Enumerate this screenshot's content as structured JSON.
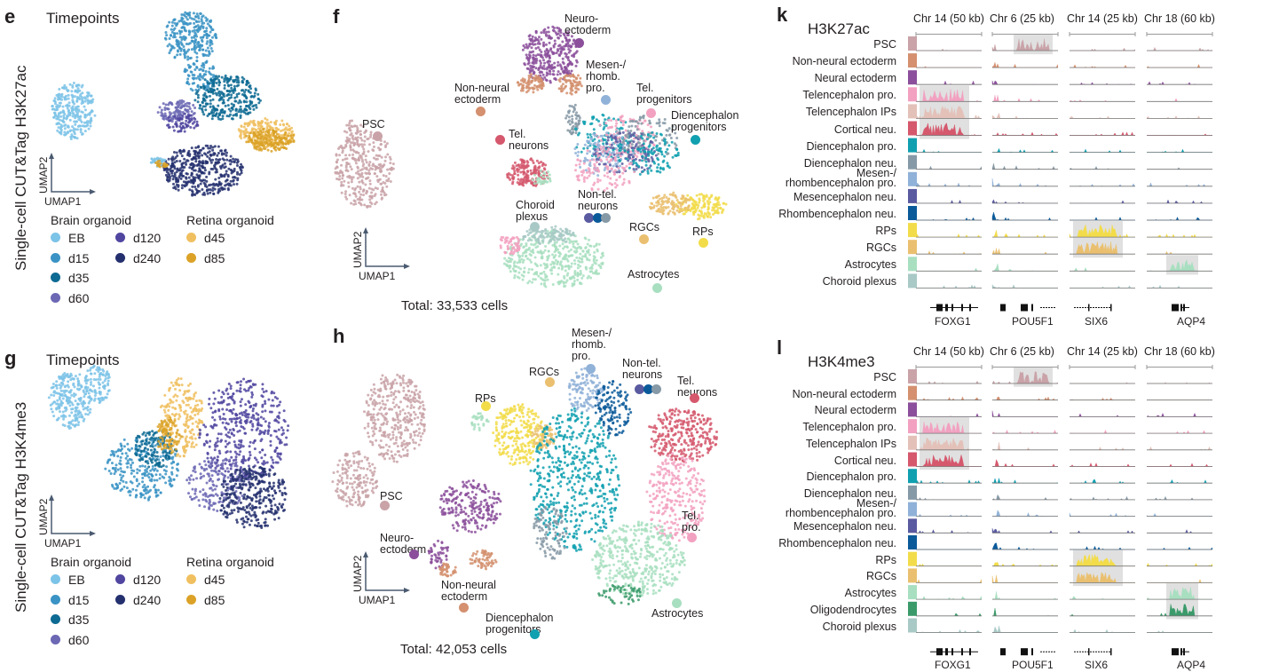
{
  "timepoints": {
    "brain_title": "Brain organoid",
    "retina_title": "Retina organoid",
    "items": [
      {
        "key": "EB",
        "label": "EB",
        "color": "#7cc3e8"
      },
      {
        "key": "d15",
        "label": "d15",
        "color": "#3a93c4"
      },
      {
        "key": "d35",
        "label": "d35",
        "color": "#0d6a93"
      },
      {
        "key": "d60",
        "label": "d60",
        "color": "#6c68b4"
      },
      {
        "key": "d120",
        "label": "d120",
        "color": "#5046a0"
      },
      {
        "key": "d240",
        "label": "d240",
        "color": "#24306e"
      },
      {
        "key": "d45",
        "label": "d45",
        "color": "#f0c060"
      },
      {
        "key": "d85",
        "label": "d85",
        "color": "#dba227"
      }
    ]
  },
  "cell_types": {
    "psc": {
      "name": "PSC",
      "color": "#c9a3a8"
    },
    "nne": {
      "name": "Non-neural ectoderm",
      "color": "#d4906f"
    },
    "ne": {
      "name": "Neural ectoderm",
      "color": "#8b4f9b"
    },
    "telpro": {
      "name": "Telencephalon pro.",
      "color": "#f2a1c0"
    },
    "telip": {
      "name": "Telencephalon IPs",
      "color": "#e3c1b9"
    },
    "cort": {
      "name": "Cortical neu.",
      "color": "#d5586d"
    },
    "dienpro": {
      "name": "Diencephalon pro.",
      "color": "#10a0b0"
    },
    "dienneu": {
      "name": "Diencephalon neu.",
      "color": "#8699a6"
    },
    "mespro": {
      "name": "Mesen-/\nrhombencephalon pro.",
      "color": "#90b2d8"
    },
    "mesneu": {
      "name": "Mesencephalon neu.",
      "color": "#5a5aa0"
    },
    "rhneu": {
      "name": "Rhombencephalon neu.",
      "color": "#0a5a9a"
    },
    "rps": {
      "name": "RPs",
      "color": "#f2dc4a"
    },
    "rgcs": {
      "name": "RGCs",
      "color": "#eac070"
    },
    "astro": {
      "name": "Astrocytes",
      "color": "#a8dfc0"
    },
    "oligo": {
      "name": "Oligodendrocytes",
      "color": "#3b9a6a"
    },
    "chor": {
      "name": "Choroid plexus",
      "color": "#a8c9c6"
    }
  },
  "panel_e": {
    "letter": "e",
    "title": "Timepoints",
    "ylabel": "Single-cell CUT&Tag H3K27ac",
    "umap_x": "UMAP1",
    "umap_y": "UMAP2"
  },
  "panel_g": {
    "letter": "g",
    "title": "Timepoints",
    "ylabel": "Single-cell CUT&Tag H3K4me3",
    "umap_x": "UMAP1",
    "umap_y": "UMAP2"
  },
  "panel_f": {
    "letter": "f",
    "umap_x": "UMAP1",
    "umap_y": "UMAP2",
    "total": "Total: 33,533 cells",
    "labels": [
      {
        "text": "PSC",
        "dots": [
          "psc"
        ]
      },
      {
        "text": "Neuro-\nectoderm",
        "dots": [
          "ne"
        ]
      },
      {
        "text": "Mesen-/\nrhomb.\npro.",
        "dots": [
          "mespro"
        ]
      },
      {
        "text": "Non-neural\nectoderm",
        "dots": [
          "nne"
        ]
      },
      {
        "text": "Tel.\nprogenitors",
        "dots": [
          "telpro"
        ]
      },
      {
        "text": "Diencephalon\nprogenitors",
        "dots": [
          "dienpro"
        ]
      },
      {
        "text": "Tel.\nneurons",
        "dots": [
          "cort"
        ]
      },
      {
        "text": "Non-tel.\nneurons",
        "dots": [
          "mesneu",
          "rhneu",
          "dienneu"
        ]
      },
      {
        "text": "Choroid\nplexus",
        "dots": [
          "chor"
        ]
      },
      {
        "text": "RGCs",
        "dots": [
          "rgcs"
        ]
      },
      {
        "text": "RPs",
        "dots": [
          "rps"
        ]
      },
      {
        "text": "Astrocytes",
        "dots": [
          "astro"
        ]
      }
    ]
  },
  "panel_h": {
    "letter": "h",
    "umap_x": "UMAP1",
    "umap_y": "UMAP2",
    "total": "Total: 42,053 cells",
    "labels": [
      {
        "text": "Mesen-/\nrhomb.\npro.",
        "dots": [
          "mespro"
        ]
      },
      {
        "text": "RGCs",
        "dots": [
          "rgcs"
        ]
      },
      {
        "text": "RPs",
        "dots": [
          "rps"
        ]
      },
      {
        "text": "Non-tel.\nneurons",
        "dots": [
          "mesneu",
          "rhneu",
          "dienneu"
        ]
      },
      {
        "text": "Tel.\nneurons",
        "dots": [
          "cort"
        ]
      },
      {
        "text": "PSC",
        "dots": [
          "psc"
        ]
      },
      {
        "text": "Neuro-\nectoderm",
        "dots": [
          "ne"
        ]
      },
      {
        "text": "Tel.\npro.",
        "dots": [
          "telpro"
        ]
      },
      {
        "text": "Non-neural\nectoderm",
        "dots": [
          "nne"
        ]
      },
      {
        "text": "Diencephalon\nprogenitors",
        "dots": [
          "dienpro"
        ]
      },
      {
        "text": "Astrocytes",
        "dots": [
          "astro"
        ]
      }
    ]
  },
  "panel_k": {
    "letter": "k",
    "mark": "H3K27ac",
    "columns": [
      "Chr 14 (50 kb)",
      "Chr 6 (25 kb)",
      "Chr 14 (25 kb)",
      "Chr 18 (60 kb)"
    ],
    "genes": [
      "FOXG1",
      "POU5F1",
      "SIX6",
      "AQP4"
    ],
    "rows": [
      "psc",
      "nne",
      "ne",
      "telpro",
      "telip",
      "cort",
      "dienpro",
      "dienneu",
      "mespro",
      "mesneu",
      "rhneu",
      "rps",
      "rgcs",
      "astro",
      "chor"
    ],
    "highlights": [
      {
        "column": 1,
        "rows": [
          "psc"
        ]
      },
      {
        "column": 0,
        "rows": [
          "telpro",
          "telip",
          "cort"
        ]
      },
      {
        "column": 2,
        "rows": [
          "rps",
          "rgcs"
        ]
      },
      {
        "column": 3,
        "rows": [
          "astro"
        ]
      }
    ]
  },
  "panel_l": {
    "letter": "l",
    "mark": "H3K4me3",
    "columns": [
      "Chr 14 (50 kb)",
      "Chr 6 (25 kb)",
      "Chr 14 (25 kb)",
      "Chr 18 (60 kb)"
    ],
    "genes": [
      "FOXG1",
      "POU5F1",
      "SIX6",
      "AQP4"
    ],
    "rows": [
      "psc",
      "nne",
      "ne",
      "telpro",
      "telip",
      "cort",
      "dienpro",
      "dienneu",
      "mespro",
      "mesneu",
      "rhneu",
      "rps",
      "rgcs",
      "astro",
      "oligo",
      "chor"
    ],
    "highlights": [
      {
        "column": 1,
        "rows": [
          "psc"
        ]
      },
      {
        "column": 0,
        "rows": [
          "telpro",
          "telip",
          "cort"
        ]
      },
      {
        "column": 2,
        "rows": [
          "rps",
          "rgcs"
        ]
      },
      {
        "column": 3,
        "rows": [
          "astro",
          "oligo"
        ]
      }
    ]
  }
}
